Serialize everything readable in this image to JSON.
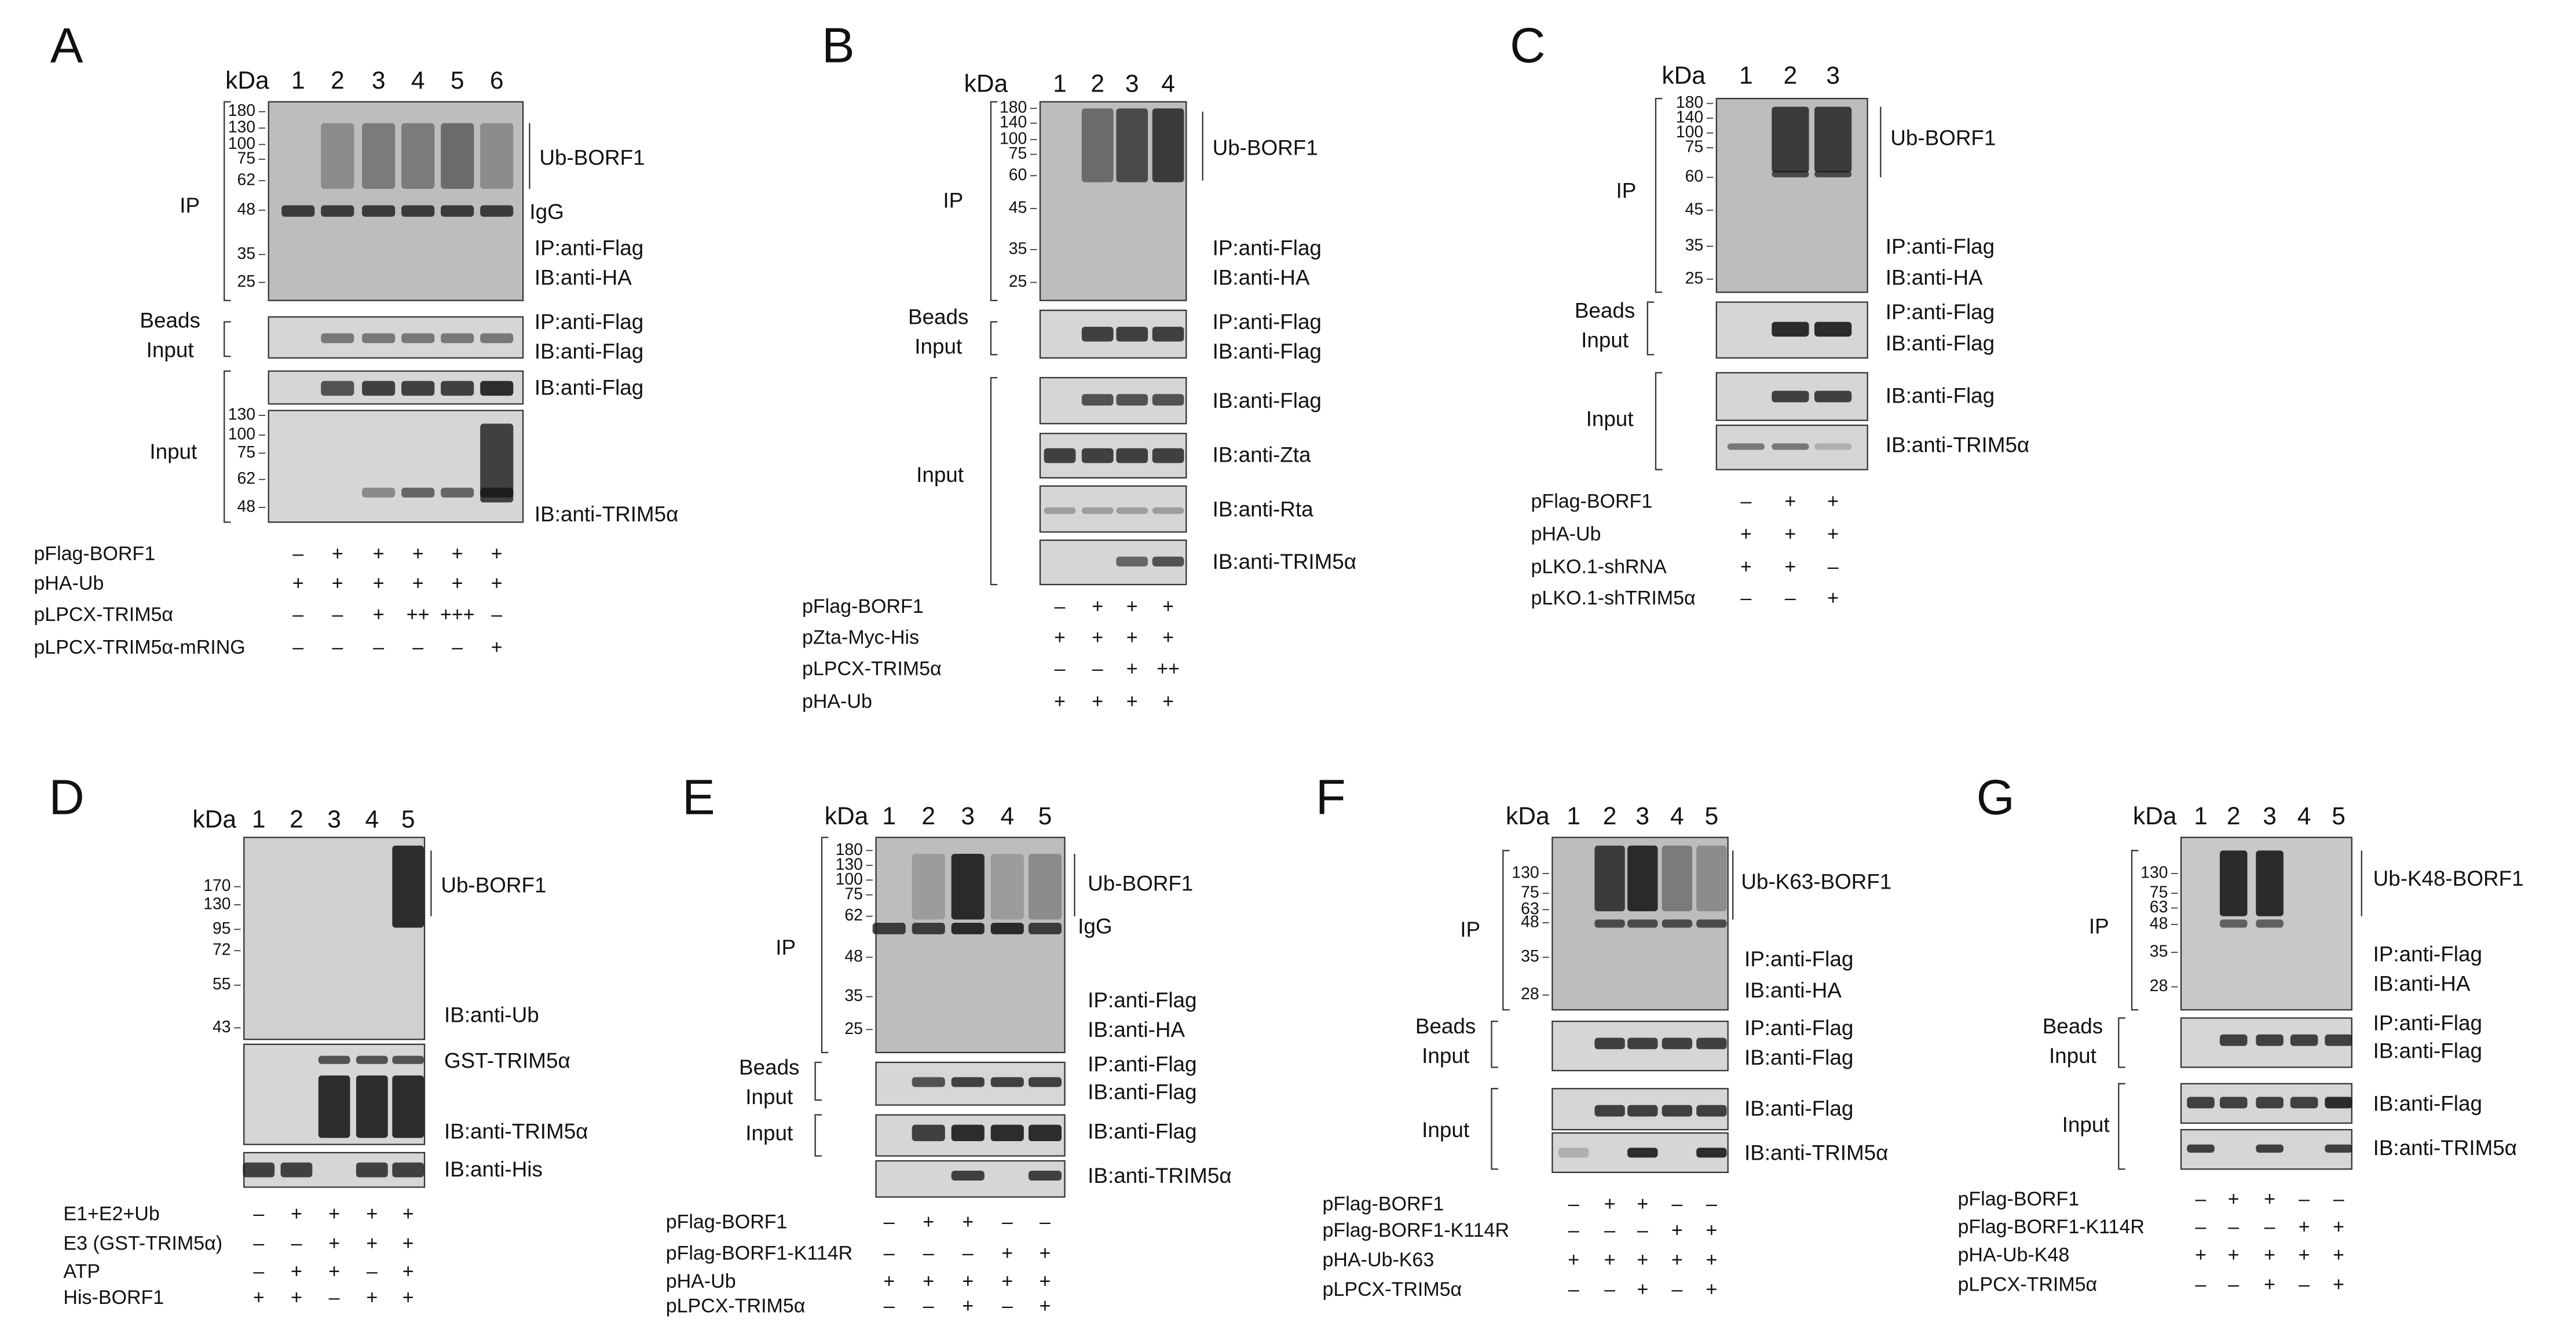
{
  "panels": [
    {
      "letter": "A",
      "kda_label": "kDa",
      "lanes": [
        "1",
        "2",
        "3",
        "4",
        "5",
        "6"
      ],
      "blots": [
        {
          "markers": [
            "180",
            "130",
            "100",
            "75",
            "62",
            "48",
            "35",
            "25"
          ],
          "labels": [
            "Ub-BORF1",
            "IgG",
            "IP:anti-Flag",
            "IB:anti-HA"
          ]
        },
        {
          "labels": [
            "IP:anti-Flag",
            "IB:anti-Flag"
          ]
        },
        {
          "labels": [
            "IB:anti-Flag"
          ]
        },
        {
          "markers": [
            "130",
            "100",
            "75",
            "62",
            "48"
          ],
          "labels": [
            "IB:anti-TRIM5α"
          ]
        }
      ],
      "groups": [
        {
          "lines": [
            "IP"
          ]
        },
        {
          "lines": [
            "Beads",
            "Input"
          ]
        },
        {
          "lines": [
            "Input"
          ]
        }
      ],
      "conditions": [
        {
          "name": "pFlag-BORF1",
          "values": [
            "–",
            "+",
            "+",
            "+",
            "+",
            "+"
          ]
        },
        {
          "name": "pHA-Ub",
          "values": [
            "+",
            "+",
            "+",
            "+",
            "+",
            "+"
          ]
        },
        {
          "name": "pLPCX-TRIM5α",
          "values": [
            "–",
            "–",
            "+",
            "++",
            "+++",
            "–"
          ]
        },
        {
          "name": "pLPCX-TRIM5α-mRING",
          "values": [
            "–",
            "–",
            "–",
            "–",
            "–",
            "+"
          ]
        }
      ]
    },
    {
      "letter": "B",
      "kda_label": "kDa",
      "lanes": [
        "1",
        "2",
        "3",
        "4"
      ],
      "blots": [
        {
          "markers": [
            "180",
            "140",
            "100",
            "75",
            "60",
            "45",
            "35",
            "25"
          ],
          "labels": [
            "Ub-BORF1",
            "IP:anti-Flag",
            "IB:anti-HA"
          ]
        },
        {
          "labels": [
            "IP:anti-Flag",
            "IB:anti-Flag"
          ]
        },
        {
          "labels": [
            "IB:anti-Flag"
          ]
        },
        {
          "labels": [
            "IB:anti-Zta"
          ]
        },
        {
          "labels": [
            "IB:anti-Rta"
          ]
        },
        {
          "labels": [
            "IB:anti-TRIM5α"
          ]
        }
      ],
      "groups": [
        {
          "lines": [
            "IP"
          ]
        },
        {
          "lines": [
            "Beads",
            "Input"
          ]
        },
        {
          "lines": [
            "Input"
          ]
        }
      ],
      "conditions": [
        {
          "name": "pFlag-BORF1",
          "values": [
            "–",
            "+",
            "+",
            "+"
          ]
        },
        {
          "name": "pZta-Myc-His",
          "values": [
            "+",
            "+",
            "+",
            "+"
          ]
        },
        {
          "name": "pLPCX-TRIM5α",
          "values": [
            "–",
            "–",
            "+",
            "++"
          ]
        },
        {
          "name": "pHA-Ub",
          "values": [
            "+",
            "+",
            "+",
            "+"
          ]
        }
      ]
    },
    {
      "letter": "C",
      "kda_label": "kDa",
      "lanes": [
        "1",
        "2",
        "3"
      ],
      "blots": [
        {
          "markers": [
            "180",
            "140",
            "100",
            "75",
            "60",
            "45",
            "35",
            "25"
          ],
          "labels": [
            "Ub-BORF1",
            "IP:anti-Flag",
            "IB:anti-HA"
          ]
        },
        {
          "labels": [
            "IP:anti-Flag",
            "IB:anti-Flag"
          ]
        },
        {
          "labels": [
            "IB:anti-Flag"
          ]
        },
        {
          "labels": [
            "IB:anti-TRIM5α"
          ]
        }
      ],
      "groups": [
        {
          "lines": [
            "IP"
          ]
        },
        {
          "lines": [
            "Beads",
            "Input"
          ]
        },
        {
          "lines": [
            "Input"
          ]
        }
      ],
      "conditions": [
        {
          "name": "pFlag-BORF1",
          "values": [
            "–",
            "+",
            "+"
          ]
        },
        {
          "name": "pHA-Ub",
          "values": [
            "+",
            "+",
            "+"
          ]
        },
        {
          "name": "pLKO.1-shRNA",
          "values": [
            "+",
            "+",
            "–"
          ]
        },
        {
          "name": "pLKO.1-shTRIM5α",
          "values": [
            "–",
            "–",
            "+"
          ]
        }
      ]
    },
    {
      "letter": "D",
      "kda_label": "kDa",
      "lanes": [
        "1",
        "2",
        "3",
        "4",
        "5"
      ],
      "blots": [
        {
          "markers": [
            "170",
            "130",
            "95",
            "72",
            "55",
            "43"
          ],
          "labels": [
            "Ub-BORF1",
            "IB:anti-Ub"
          ]
        },
        {
          "labels": [
            "GST-TRIM5α",
            "IB:anti-TRIM5α"
          ]
        },
        {
          "labels": [
            "IB:anti-His"
          ]
        }
      ],
      "conditions": [
        {
          "name": "E1+E2+Ub",
          "values": [
            "–",
            "+",
            "+",
            "+",
            "+"
          ]
        },
        {
          "name": "E3 (GST-TRIM5α)",
          "values": [
            "–",
            "–",
            "+",
            "+",
            "+"
          ]
        },
        {
          "name": "ATP",
          "values": [
            "–",
            "+",
            "+",
            "–",
            "+"
          ]
        },
        {
          "name": "His-BORF1",
          "values": [
            "+",
            "+",
            "–",
            "+",
            "+"
          ]
        }
      ]
    },
    {
      "letter": "E",
      "kda_label": "kDa",
      "lanes": [
        "1",
        "2",
        "3",
        "4",
        "5"
      ],
      "blots": [
        {
          "markers": [
            "180",
            "130",
            "100",
            "75",
            "62",
            "48",
            "35",
            "25"
          ],
          "labels": [
            "Ub-BORF1",
            "IgG",
            "IP:anti-Flag",
            "IB:anti-HA"
          ]
        },
        {
          "labels": [
            "IP:anti-Flag",
            "IB:anti-Flag"
          ]
        },
        {
          "labels": [
            "IB:anti-Flag"
          ]
        },
        {
          "labels": [
            "IB:anti-TRIM5α"
          ]
        }
      ],
      "groups": [
        {
          "lines": [
            "IP"
          ]
        },
        {
          "lines": [
            "Beads",
            "Input"
          ]
        },
        {
          "lines": [
            "Input"
          ]
        }
      ],
      "conditions": [
        {
          "name": "pFlag-BORF1",
          "values": [
            "–",
            "+",
            "+",
            "–",
            "–"
          ]
        },
        {
          "name": "pFlag-BORF1-K114R",
          "values": [
            "–",
            "–",
            "–",
            "+",
            "+"
          ]
        },
        {
          "name": "pHA-Ub",
          "values": [
            "+",
            "+",
            "+",
            "+",
            "+"
          ]
        },
        {
          "name": "pLPCX-TRIM5α",
          "values": [
            "–",
            "–",
            "+",
            "–",
            "+"
          ]
        }
      ]
    },
    {
      "letter": "F",
      "kda_label": "kDa",
      "lanes": [
        "1",
        "2",
        "3",
        "4",
        "5"
      ],
      "blots": [
        {
          "markers": [
            "130",
            "75",
            "63",
            "48",
            "35",
            "28"
          ],
          "labels": [
            "Ub-K63-BORF1",
            "IP:anti-Flag",
            "IB:anti-HA"
          ]
        },
        {
          "labels": [
            "IP:anti-Flag",
            "IB:anti-Flag"
          ]
        },
        {
          "labels": [
            "IB:anti-Flag"
          ]
        },
        {
          "labels": [
            "IB:anti-TRIM5α"
          ]
        }
      ],
      "groups": [
        {
          "lines": [
            "IP"
          ]
        },
        {
          "lines": [
            "Beads",
            "Input"
          ]
        },
        {
          "lines": [
            "Input"
          ]
        }
      ],
      "conditions": [
        {
          "name": "pFlag-BORF1",
          "values": [
            "–",
            "+",
            "+",
            "–",
            "–"
          ]
        },
        {
          "name": "pFlag-BORF1-K114R",
          "values": [
            "–",
            "–",
            "–",
            "+",
            "+"
          ]
        },
        {
          "name": "pHA-Ub-K63",
          "values": [
            "+",
            "+",
            "+",
            "+",
            "+"
          ]
        },
        {
          "name": "pLPCX-TRIM5α",
          "values": [
            "–",
            "–",
            "+",
            "–",
            "+"
          ]
        }
      ]
    },
    {
      "letter": "G",
      "kda_label": "kDa",
      "lanes": [
        "1",
        "2",
        "3",
        "4",
        "5"
      ],
      "blots": [
        {
          "markers": [
            "130",
            "75",
            "63",
            "48",
            "35",
            "28"
          ],
          "labels": [
            "Ub-K48-BORF1",
            "IP:anti-Flag",
            "IB:anti-HA"
          ]
        },
        {
          "labels": [
            "IP:anti-Flag",
            "IB:anti-Flag"
          ]
        },
        {
          "labels": [
            "IB:anti-Flag"
          ]
        },
        {
          "labels": [
            "IB:anti-TRIM5α"
          ]
        }
      ],
      "groups": [
        {
          "lines": [
            "IP"
          ]
        },
        {
          "lines": [
            "Beads",
            "Input"
          ]
        },
        {
          "lines": [
            "Input"
          ]
        }
      ],
      "conditions": [
        {
          "name": "pFlag-BORF1",
          "values": [
            "–",
            "+",
            "+",
            "–",
            "–"
          ]
        },
        {
          "name": "pFlag-BORF1-K114R",
          "values": [
            "–",
            "–",
            "–",
            "+",
            "+"
          ]
        },
        {
          "name": "pHA-Ub-K48",
          "values": [
            "+",
            "+",
            "+",
            "+",
            "+"
          ]
        },
        {
          "name": "pLPCX-TRIM5α",
          "values": [
            "–",
            "–",
            "+",
            "–",
            "+"
          ]
        }
      ]
    }
  ]
}
